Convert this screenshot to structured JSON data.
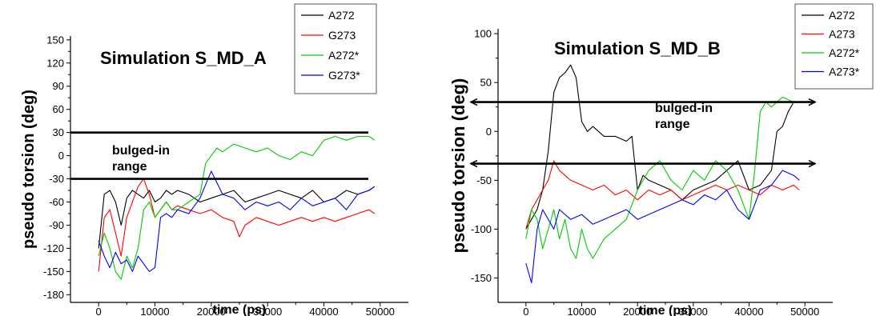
{
  "chart_data": [
    {
      "type": "line",
      "title": "Simulation S_MD_A",
      "xlabel": "time (ps)",
      "ylabel": "pseudo torsion (deg)",
      "xlim": [
        -5000,
        55000
      ],
      "ylim": [
        -190,
        155
      ],
      "xticks": [
        0,
        10000,
        20000,
        30000,
        40000,
        50000
      ],
      "yticks": [
        150,
        120,
        90,
        60,
        30,
        0,
        -30,
        -60,
        -90,
        -120,
        -150,
        -180
      ],
      "legend_position": "top-right, outside plot",
      "annotation": [
        "bulged-in",
        "range"
      ],
      "reference_lines_y": [
        30,
        -30
      ],
      "grid": false,
      "series": [
        {
          "name": "A272",
          "color": "#000000",
          "x": [
            0,
            1000,
            2000,
            3000,
            4000,
            5000,
            6000,
            7000,
            8000,
            9000,
            10000,
            11000,
            12000,
            13000,
            14000,
            16000,
            18000,
            20000,
            22000,
            24000,
            26000,
            28000,
            30000,
            32000,
            34000,
            36000,
            38000,
            40000,
            42000,
            44000,
            46000,
            48000,
            49000
          ],
          "y": [
            -120,
            -50,
            -45,
            -60,
            -90,
            -55,
            -45,
            -50,
            -55,
            -45,
            -60,
            -55,
            -45,
            -50,
            -45,
            -50,
            -60,
            -55,
            -50,
            -45,
            -60,
            -55,
            -50,
            -45,
            -50,
            -55,
            -45,
            -60,
            -55,
            -45,
            -50,
            -45,
            -40
          ]
        },
        {
          "name": "G273",
          "color": "#ff0000",
          "x": [
            0,
            1000,
            2000,
            3000,
            4000,
            5000,
            6000,
            7000,
            8000,
            9000,
            10000,
            11000,
            12000,
            13000,
            14000,
            16000,
            18000,
            20000,
            22000,
            24000,
            25000,
            26000,
            28000,
            30000,
            32000,
            34000,
            36000,
            38000,
            40000,
            42000,
            44000,
            46000,
            48000,
            49000
          ],
          "y": [
            -150,
            -80,
            -70,
            -100,
            -130,
            -80,
            -60,
            -40,
            -30,
            -50,
            -80,
            -70,
            -60,
            -70,
            -65,
            -70,
            -75,
            -70,
            -80,
            -85,
            -105,
            -90,
            -80,
            -85,
            -90,
            -85,
            -80,
            -85,
            -80,
            -85,
            -80,
            -75,
            -70,
            -75
          ]
        },
        {
          "name": "A272*",
          "color": "#00cc00",
          "x": [
            0,
            1000,
            2000,
            3000,
            4000,
            5000,
            6000,
            7000,
            8000,
            9000,
            10000,
            11000,
            12000,
            13000,
            14000,
            16000,
            18000,
            19000,
            20000,
            21000,
            22000,
            24000,
            26000,
            28000,
            30000,
            32000,
            34000,
            36000,
            38000,
            40000,
            42000,
            44000,
            46000,
            48000,
            49000
          ],
          "y": [
            -130,
            -100,
            -120,
            -150,
            -160,
            -130,
            -145,
            -120,
            -70,
            -60,
            -80,
            -70,
            -60,
            -70,
            -70,
            -60,
            -50,
            -10,
            0,
            10,
            5,
            15,
            10,
            5,
            10,
            0,
            -5,
            5,
            0,
            20,
            25,
            20,
            25,
            25,
            20
          ]
        },
        {
          "name": "G273*",
          "color": "#0000ff",
          "x": [
            0,
            1000,
            2000,
            3000,
            4000,
            5000,
            6000,
            7000,
            8000,
            9000,
            10000,
            11000,
            12000,
            13000,
            14000,
            16000,
            18000,
            20000,
            21000,
            22000,
            24000,
            26000,
            28000,
            30000,
            32000,
            34000,
            36000,
            38000,
            40000,
            42000,
            44000,
            46000,
            48000,
            49000
          ],
          "y": [
            -110,
            -130,
            -145,
            -125,
            -140,
            -135,
            -150,
            -130,
            -140,
            -150,
            -145,
            -80,
            -75,
            -80,
            -70,
            -75,
            -55,
            -20,
            -35,
            -50,
            -55,
            -70,
            -60,
            -65,
            -60,
            -70,
            -55,
            -65,
            -60,
            -55,
            -70,
            -50,
            -45,
            -40
          ]
        }
      ]
    },
    {
      "type": "line",
      "title": "Simulation S_MD_B",
      "xlabel": "time (ps)",
      "ylabel": "pseudo torsion (deg)",
      "xlim": [
        -5000,
        55000
      ],
      "ylim": [
        -175,
        105
      ],
      "xticks": [
        0,
        10000,
        20000,
        30000,
        40000,
        50000
      ],
      "yticks": [
        100,
        50,
        0,
        -50,
        -100,
        -150
      ],
      "legend_position": "top-right, outside plot",
      "annotation": [
        "bulged-in",
        "range"
      ],
      "reference_lines_y": [
        30,
        -33
      ],
      "grid": false,
      "series": [
        {
          "name": "A272",
          "color": "#000000",
          "x": [
            0,
            1000,
            2000,
            3000,
            4000,
            5000,
            6000,
            7000,
            8000,
            9000,
            10000,
            11000,
            12000,
            14000,
            16000,
            18000,
            19000,
            20000,
            21000,
            22000,
            24000,
            26000,
            28000,
            30000,
            32000,
            34000,
            36000,
            38000,
            40000,
            42000,
            44000,
            45000,
            46000,
            47000,
            48000,
            49000
          ],
          "y": [
            -100,
            -90,
            -80,
            -60,
            -20,
            40,
            55,
            60,
            68,
            55,
            10,
            0,
            5,
            -5,
            -5,
            -10,
            -5,
            -60,
            -45,
            -50,
            -55,
            -60,
            -70,
            -60,
            -55,
            -50,
            -40,
            -30,
            -60,
            -55,
            -40,
            0,
            5,
            20,
            30,
            30
          ]
        },
        {
          "name": "A273",
          "color": "#ff0000",
          "x": [
            0,
            1000,
            2000,
            3000,
            4000,
            5000,
            6000,
            7000,
            8000,
            10000,
            12000,
            14000,
            16000,
            18000,
            20000,
            22000,
            24000,
            26000,
            28000,
            30000,
            32000,
            34000,
            36000,
            38000,
            40000,
            42000,
            44000,
            46000,
            48000,
            49000
          ],
          "y": [
            -100,
            -80,
            -70,
            -60,
            -50,
            -30,
            -40,
            -45,
            -50,
            -55,
            -60,
            -55,
            -65,
            -60,
            -70,
            -60,
            -65,
            -60,
            -70,
            -65,
            -60,
            -55,
            -60,
            -55,
            -60,
            -65,
            -55,
            -60,
            -55,
            -60
          ]
        },
        {
          "name": "A272*",
          "color": "#00cc00",
          "x": [
            0,
            1000,
            2000,
            3000,
            4000,
            5000,
            6000,
            7000,
            8000,
            9000,
            10000,
            11000,
            12000,
            14000,
            16000,
            18000,
            20000,
            22000,
            24000,
            26000,
            28000,
            30000,
            32000,
            34000,
            36000,
            38000,
            40000,
            41000,
            42000,
            43000,
            44000,
            46000,
            48000,
            49000
          ],
          "y": [
            -110,
            -80,
            -90,
            -120,
            -100,
            -80,
            -110,
            -90,
            -120,
            -130,
            -100,
            -120,
            -130,
            -110,
            -100,
            -90,
            -60,
            -40,
            -30,
            -50,
            -60,
            -40,
            -50,
            -30,
            -40,
            -60,
            -90,
            -40,
            20,
            30,
            25,
            35,
            30,
            30
          ]
        },
        {
          "name": "A273*",
          "color": "#0000ff",
          "x": [
            0,
            1000,
            2000,
            3000,
            4000,
            5000,
            6000,
            8000,
            10000,
            12000,
            14000,
            16000,
            18000,
            20000,
            22000,
            24000,
            26000,
            28000,
            30000,
            32000,
            34000,
            36000,
            38000,
            40000,
            42000,
            44000,
            46000,
            48000,
            49000
          ],
          "y": [
            -135,
            -155,
            -100,
            -80,
            -90,
            -100,
            -80,
            -90,
            -85,
            -95,
            -90,
            -85,
            -80,
            -90,
            -85,
            -80,
            -75,
            -70,
            -75,
            -65,
            -70,
            -60,
            -80,
            -90,
            -60,
            -55,
            -40,
            -45,
            -50
          ]
        }
      ]
    }
  ]
}
